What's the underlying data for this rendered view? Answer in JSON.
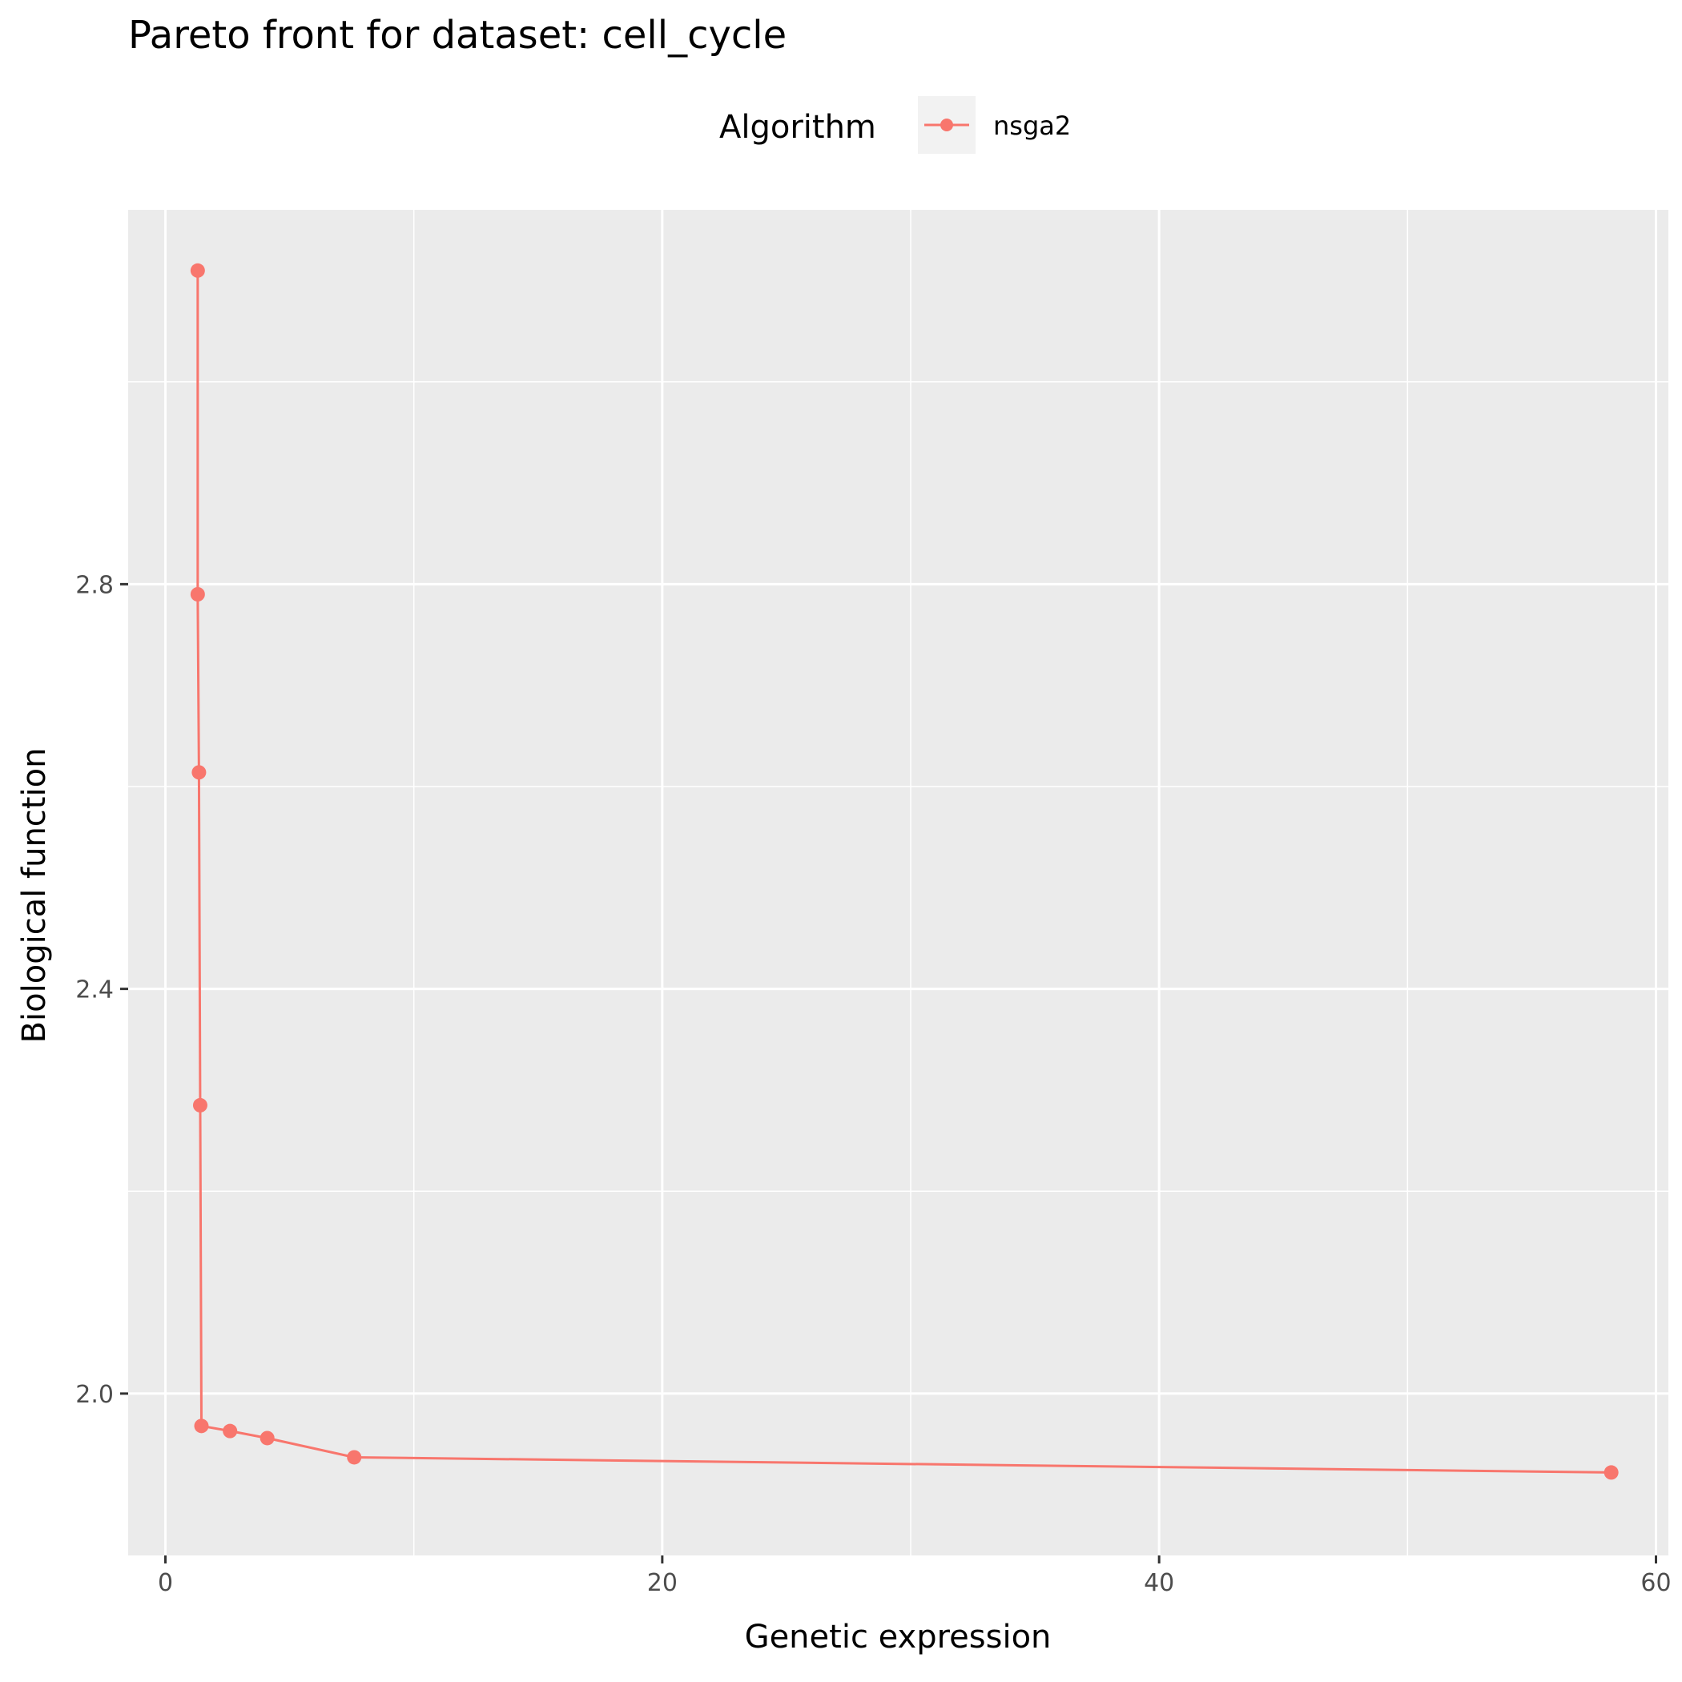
{
  "chart_data": {
    "type": "line",
    "title": "Pareto front for dataset: cell_cycle",
    "xlabel": "Genetic expression",
    "ylabel": "Biological function",
    "xlim": [
      -1.5,
      60.5
    ],
    "ylim": [
      1.84,
      3.17
    ],
    "x_ticks": [
      0,
      20,
      40,
      60
    ],
    "x_tick_labels": [
      "0",
      "20",
      "40",
      "60"
    ],
    "x_minor_ticks": [
      10,
      30,
      50
    ],
    "y_ticks": [
      2.0,
      2.4,
      2.8
    ],
    "y_tick_labels": [
      "2.0",
      "2.4",
      "2.8"
    ],
    "y_minor_ticks": [
      2.2,
      2.6,
      3.0
    ],
    "grid": true,
    "legend": {
      "title": "Algorithm",
      "position": "top",
      "entries": [
        "nsga2"
      ]
    },
    "series": [
      {
        "name": "nsga2",
        "color": "#F8766D",
        "points": [
          {
            "x": 1.3,
            "y": 3.11
          },
          {
            "x": 1.3,
            "y": 2.79
          },
          {
            "x": 1.35,
            "y": 2.614
          },
          {
            "x": 1.4,
            "y": 2.285
          },
          {
            "x": 1.45,
            "y": 1.968
          },
          {
            "x": 2.6,
            "y": 1.963
          },
          {
            "x": 4.1,
            "y": 1.956
          },
          {
            "x": 7.6,
            "y": 1.937
          },
          {
            "x": 58.2,
            "y": 1.922
          }
        ]
      }
    ]
  }
}
